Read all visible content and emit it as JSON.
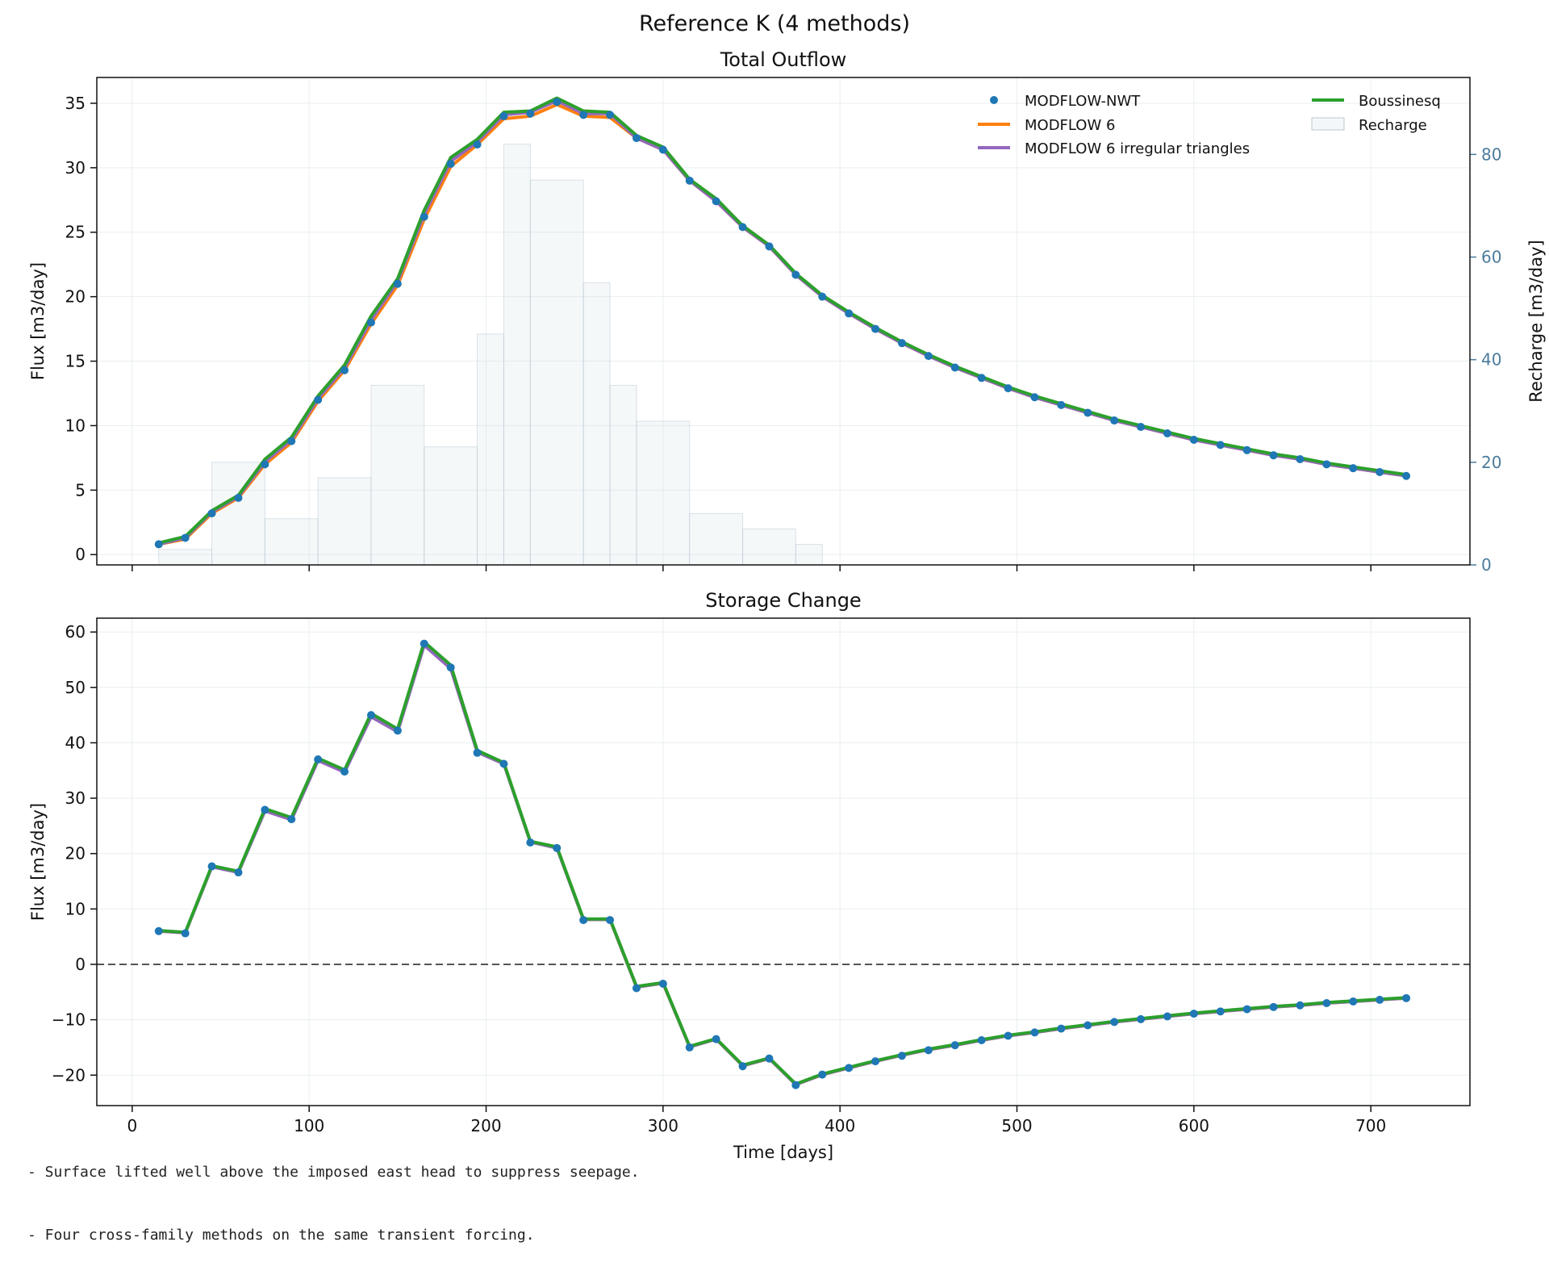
{
  "suptitle": "Reference K (4 methods)",
  "notes": [
    "- Surface lifted well above the imposed east head to suppress seepage.",
    "- Four cross-family methods on the same transient forcing."
  ],
  "colors": {
    "nwt": "#1f77b4",
    "mf6": "#ff7f0e",
    "mf6_tri": "#9467bd",
    "boussinesq": "#2ca02c",
    "recharge": "#4b7b9c",
    "zero_line": "#555555"
  },
  "chart_data": [
    {
      "type": "line",
      "title": "Total Outflow",
      "xlabel": "",
      "ylabel": "Flux [m3/day]",
      "y2label": "Recharge [m3/day]",
      "xlim": [
        -20,
        756
      ],
      "ylim": [
        -0.8,
        37
      ],
      "y2lim": [
        0,
        95
      ],
      "xticks": [
        0,
        100,
        200,
        300,
        400,
        500,
        600,
        700
      ],
      "yticks": [
        0,
        5,
        10,
        15,
        20,
        25,
        30,
        35
      ],
      "y2ticks": [
        0,
        20,
        40,
        60,
        80
      ],
      "grid": true,
      "legend": {
        "position": "top-right",
        "columns": 2
      },
      "x": [
        15,
        30,
        45,
        60,
        75,
        90,
        105,
        120,
        135,
        150,
        165,
        180,
        195,
        210,
        225,
        240,
        255,
        270,
        285,
        300,
        315,
        330,
        345,
        360,
        375,
        390,
        405,
        420,
        435,
        450,
        465,
        480,
        495,
        510,
        525,
        540,
        555,
        570,
        585,
        600,
        615,
        630,
        645,
        660,
        675,
        690,
        705,
        720
      ],
      "series": [
        {
          "name": "MODFLOW-NWT",
          "style": "markers",
          "color": "#1f77b4",
          "values": [
            0.8,
            1.3,
            3.2,
            4.4,
            7.0,
            8.8,
            12.0,
            14.3,
            18.0,
            21.0,
            26.2,
            30.3,
            31.8,
            34.0,
            34.2,
            35.1,
            34.1,
            34.1,
            32.3,
            31.4,
            29.0,
            27.4,
            25.4,
            23.9,
            21.7,
            20.0,
            18.7,
            17.5,
            16.4,
            15.4,
            14.5,
            13.7,
            12.9,
            12.2,
            11.6,
            11.0,
            10.4,
            9.9,
            9.4,
            8.9,
            8.5,
            8.1,
            7.7,
            7.4,
            7.0,
            6.7,
            6.4,
            6.1
          ]
        },
        {
          "name": "MODFLOW 6",
          "style": "line",
          "color": "#ff7f0e",
          "values": [
            0.8,
            1.2,
            3.2,
            4.4,
            7.0,
            8.7,
            11.9,
            14.3,
            17.9,
            20.9,
            26.0,
            30.1,
            31.8,
            33.8,
            34.0,
            34.9,
            34.0,
            33.9,
            32.3,
            31.4,
            29.0,
            27.4,
            25.4,
            23.9,
            21.7,
            20.0,
            18.7,
            17.5,
            16.4,
            15.4,
            14.5,
            13.7,
            12.9,
            12.2,
            11.6,
            11.0,
            10.4,
            9.9,
            9.4,
            8.9,
            8.5,
            8.1,
            7.7,
            7.4,
            7.0,
            6.7,
            6.4,
            6.1
          ]
        },
        {
          "name": "MODFLOW 6 irregular triangles",
          "style": "line",
          "color": "#9467bd",
          "values": [
            0.8,
            1.3,
            3.3,
            4.5,
            7.2,
            8.9,
            12.1,
            14.5,
            18.2,
            21.2,
            26.4,
            30.5,
            32.0,
            34.1,
            34.3,
            35.2,
            34.2,
            34.2,
            32.3,
            31.4,
            29.0,
            27.4,
            25.4,
            23.9,
            21.7,
            20.0,
            18.7,
            17.5,
            16.4,
            15.4,
            14.5,
            13.7,
            12.9,
            12.2,
            11.6,
            11.0,
            10.4,
            9.9,
            9.4,
            8.9,
            8.5,
            8.1,
            7.7,
            7.4,
            7.0,
            6.7,
            6.4,
            6.1
          ]
        },
        {
          "name": "Boussinesq",
          "style": "line",
          "color": "#2ca02c",
          "values": [
            0.9,
            1.4,
            3.4,
            4.6,
            7.4,
            9.1,
            12.3,
            14.7,
            18.5,
            21.4,
            26.7,
            30.8,
            32.2,
            34.3,
            34.4,
            35.4,
            34.4,
            34.3,
            32.5,
            31.6,
            29.1,
            27.6,
            25.5,
            24.0,
            21.8,
            20.1,
            18.8,
            17.6,
            16.5,
            15.5,
            14.6,
            13.8,
            13.0,
            12.3,
            11.7,
            11.1,
            10.5,
            10.0,
            9.5,
            9.0,
            8.6,
            8.2,
            7.8,
            7.5,
            7.1,
            6.8,
            6.5,
            6.2
          ]
        }
      ],
      "recharge": {
        "name": "Recharge",
        "style": "step-area",
        "x_edges": [
          15,
          45,
          75,
          105,
          135,
          165,
          195,
          210,
          225,
          255,
          270,
          285,
          315,
          345,
          375,
          390
        ],
        "values": [
          3,
          20,
          9,
          17,
          35,
          23,
          45,
          82,
          75,
          55,
          35,
          28,
          10,
          7,
          4,
          0
        ]
      }
    },
    {
      "type": "line",
      "title": "Storage Change",
      "xlabel": "Time [days]",
      "ylabel": "Flux [m3/day]",
      "xlim": [
        -20,
        756
      ],
      "ylim": [
        -25.5,
        62.5
      ],
      "xticks": [
        0,
        100,
        200,
        300,
        400,
        500,
        600,
        700
      ],
      "yticks": [
        -20,
        -10,
        0,
        10,
        20,
        30,
        40,
        50,
        60
      ],
      "grid": true,
      "zero_line": true,
      "x": [
        15,
        30,
        45,
        60,
        75,
        90,
        105,
        120,
        135,
        150,
        165,
        180,
        195,
        210,
        225,
        240,
        255,
        270,
        285,
        300,
        315,
        330,
        345,
        360,
        375,
        390,
        405,
        420,
        435,
        450,
        465,
        480,
        495,
        510,
        525,
        540,
        555,
        570,
        585,
        600,
        615,
        630,
        645,
        660,
        675,
        690,
        705,
        720
      ],
      "series": [
        {
          "name": "MODFLOW-NWT",
          "style": "markers",
          "color": "#1f77b4",
          "values": [
            6.0,
            5.6,
            17.7,
            16.6,
            27.9,
            26.2,
            37.0,
            34.8,
            45.0,
            42.2,
            57.9,
            53.6,
            38.2,
            36.2,
            22.0,
            21.0,
            8.0,
            8.0,
            -4.3,
            -3.5,
            -15.0,
            -13.5,
            -18.4,
            -17.0,
            -21.8,
            -19.9,
            -18.7,
            -17.5,
            -16.5,
            -15.5,
            -14.6,
            -13.7,
            -12.9,
            -12.3,
            -11.6,
            -11.0,
            -10.4,
            -9.9,
            -9.4,
            -8.9,
            -8.5,
            -8.1,
            -7.7,
            -7.4,
            -7.0,
            -6.7,
            -6.4,
            -6.1
          ]
        },
        {
          "name": "MODFLOW 6",
          "style": "line",
          "color": "#ff7f0e",
          "values": [
            6.0,
            5.7,
            17.7,
            16.7,
            27.9,
            26.3,
            37.0,
            34.9,
            45.0,
            42.3,
            57.9,
            53.7,
            38.4,
            36.3,
            22.1,
            21.1,
            8.1,
            8.1,
            -4.1,
            -3.4,
            -14.9,
            -13.5,
            -18.3,
            -17.0,
            -21.7,
            -19.9,
            -18.7,
            -17.5,
            -16.4,
            -15.4,
            -14.6,
            -13.7,
            -12.9,
            -12.3,
            -11.6,
            -11.0,
            -10.4,
            -9.9,
            -9.4,
            -8.9,
            -8.5,
            -8.1,
            -7.7,
            -7.4,
            -7.0,
            -6.7,
            -6.4,
            -6.1
          ]
        },
        {
          "name": "MODFLOW 6 irregular triangles",
          "style": "line",
          "color": "#9467bd",
          "values": [
            6.0,
            5.7,
            17.6,
            16.6,
            27.7,
            26.1,
            36.8,
            34.7,
            44.7,
            42.0,
            57.6,
            53.4,
            38.3,
            36.2,
            22.1,
            21.0,
            8.1,
            8.1,
            -4.1,
            -3.4,
            -14.9,
            -13.5,
            -18.3,
            -17.0,
            -21.7,
            -19.9,
            -18.7,
            -17.5,
            -16.4,
            -15.4,
            -14.6,
            -13.7,
            -12.9,
            -12.3,
            -11.6,
            -11.0,
            -10.4,
            -9.9,
            -9.4,
            -8.9,
            -8.5,
            -8.1,
            -7.7,
            -7.4,
            -7.0,
            -6.7,
            -6.4,
            -6.1
          ]
        },
        {
          "name": "Boussinesq",
          "style": "line",
          "color": "#2ca02c",
          "values": [
            6.1,
            5.8,
            17.8,
            16.8,
            28.1,
            26.5,
            37.2,
            35.1,
            45.3,
            42.5,
            58.2,
            54.0,
            38.6,
            36.4,
            22.2,
            21.2,
            8.2,
            8.2,
            -4.0,
            -3.3,
            -14.8,
            -13.4,
            -18.2,
            -16.9,
            -21.6,
            -19.8,
            -18.6,
            -17.4,
            -16.3,
            -15.3,
            -14.5,
            -13.6,
            -12.8,
            -12.2,
            -11.5,
            -10.9,
            -10.3,
            -9.8,
            -9.3,
            -8.8,
            -8.4,
            -8.0,
            -7.6,
            -7.3,
            -6.9,
            -6.6,
            -6.3,
            -6.0
          ]
        }
      ]
    }
  ]
}
